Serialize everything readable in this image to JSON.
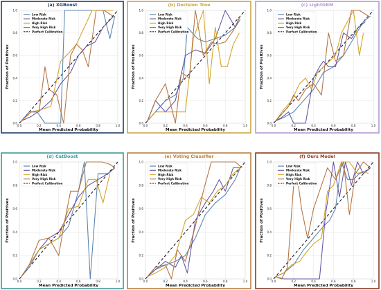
{
  "colors": {
    "low": "#5580a8",
    "moderate": "#5d4fa0",
    "high": "#d0a020",
    "very_high": "#b06e3a",
    "perfect": "#1a1a2e",
    "grid": "#e4e4e4"
  },
  "chart_data": [
    {
      "type": "line",
      "title": "(a) XGBoost",
      "frame_color": "#1f3f66",
      "xlabel": "Mean Predicted Probability",
      "ylabel": "Fraction of Positives",
      "xlim": [
        0,
        1
      ],
      "ylim": [
        0,
        1
      ],
      "xticks": [
        "0.0",
        "0.2",
        "0.4",
        "0.6",
        "0.8",
        "1.0"
      ],
      "yticks": [
        "0.0",
        "0.2",
        "0.4",
        "0.6",
        "0.8",
        "1.0"
      ],
      "legend": [
        "Low Risk",
        "Moderate Risk",
        "High Risk",
        "Very High Risk",
        "Perfect Calibration"
      ],
      "legend_position": "top-left",
      "grid": true,
      "series": [
        {
          "name": "Low Risk",
          "x": [
            0.02,
            0.1,
            0.18,
            0.26,
            0.34,
            0.42,
            0.46,
            0.62,
            0.68,
            0.75,
            0.85,
            0.92,
            0.97
          ],
          "y": [
            0.02,
            0.1,
            0.1,
            0.0,
            0.0,
            0.0,
            1.0,
            1.0,
            1.0,
            1.0,
            1.0,
            0.75,
            0.95
          ]
        },
        {
          "name": "Moderate Risk",
          "x": [
            0.02,
            0.12,
            0.22,
            0.32,
            0.42,
            0.52,
            0.6,
            0.68,
            0.77,
            0.85,
            0.96
          ],
          "y": [
            0.02,
            0.06,
            0.12,
            0.2,
            0.35,
            0.45,
            0.6,
            0.68,
            0.72,
            0.85,
            0.95
          ]
        },
        {
          "name": "High Risk",
          "x": [
            0.02,
            0.12,
            0.22,
            0.32,
            0.42,
            0.5,
            0.58,
            0.66,
            0.74,
            0.82,
            0.9,
            0.95
          ],
          "y": [
            0.02,
            0.1,
            0.12,
            0.15,
            0.55,
            0.62,
            0.7,
            0.85,
            1.0,
            1.0,
            1.0,
            1.0
          ]
        },
        {
          "name": "Very High Risk",
          "x": [
            0.02,
            0.12,
            0.2,
            0.26,
            0.3,
            0.38,
            0.45,
            0.52,
            0.58,
            0.64,
            0.7,
            0.78,
            0.86,
            0.95
          ],
          "y": [
            0.02,
            0.1,
            0.1,
            0.5,
            0.3,
            0.25,
            0.0,
            0.6,
            0.7,
            0.65,
            0.5,
            1.0,
            1.0,
            0.95
          ]
        }
      ]
    },
    {
      "type": "line",
      "title": "(b) Decision Tree",
      "frame_color": "#c9a640",
      "xlabel": "Mean Predicted Probability",
      "ylabel": "Fraction of Positives",
      "xlim": [
        0,
        1
      ],
      "ylim": [
        0,
        1
      ],
      "xticks": [
        "0.0",
        "0.2",
        "0.4",
        "0.6",
        "0.8",
        "1.0"
      ],
      "yticks": [
        "0.0",
        "0.2",
        "0.4",
        "0.6",
        "0.8",
        "1.0"
      ],
      "legend": [
        "Low Risk",
        "Moderate Risk",
        "High Risk",
        "Very High Risk",
        "Perfect Calibration"
      ],
      "legend_position": "top-left",
      "grid": true,
      "series": [
        {
          "name": "Low Risk",
          "x": [
            0.02,
            0.1,
            0.2,
            0.3,
            0.38,
            0.42,
            0.52,
            0.6,
            0.7,
            0.8,
            0.9,
            0.95
          ],
          "y": [
            0.02,
            0.1,
            0.2,
            0.25,
            0.4,
            0.85,
            0.75,
            0.72,
            0.75,
            0.78,
            0.85,
            0.92
          ]
        },
        {
          "name": "Moderate Risk",
          "x": [
            0.02,
            0.1,
            0.2,
            0.3,
            0.4,
            0.5,
            0.6,
            0.7,
            0.8,
            0.9,
            0.95
          ],
          "y": [
            0.02,
            0.2,
            0.1,
            0.2,
            0.6,
            0.65,
            0.62,
            0.75,
            1.0,
            0.85,
            0.95
          ]
        },
        {
          "name": "High Risk",
          "x": [
            0.02,
            0.1,
            0.2,
            0.3,
            0.4,
            0.48,
            0.58,
            0.64,
            0.7,
            0.76,
            0.82,
            0.88,
            0.94
          ],
          "y": [
            0.02,
            0.1,
            0.1,
            0.1,
            0.1,
            0.75,
            1.0,
            0.35,
            0.85,
            0.5,
            0.5,
            0.7,
            0.8
          ]
        },
        {
          "name": "Very High Risk",
          "x": [
            0.02,
            0.1,
            0.2,
            0.3,
            0.36,
            0.44,
            0.5,
            0.58,
            0.66,
            0.72,
            0.8,
            0.88,
            0.95
          ],
          "y": [
            0.02,
            0.2,
            0.35,
            0.0,
            0.45,
            0.4,
            1.0,
            0.6,
            0.72,
            0.7,
            0.72,
            0.82,
            0.95
          ]
        }
      ]
    },
    {
      "type": "line",
      "title": "(c) LightGBM",
      "frame_color": "#b49ad4",
      "xlabel": "Mean Predicted Probability",
      "ylabel": "Fraction of Positives",
      "xlim": [
        0,
        1
      ],
      "ylim": [
        0,
        1
      ],
      "xticks": [
        "0.0",
        "0.2",
        "0.4",
        "0.6",
        "0.8",
        "1.0"
      ],
      "yticks": [
        "0.0",
        "0.2",
        "0.4",
        "0.6",
        "0.8",
        "1.0"
      ],
      "legend": [
        "Low Risk",
        "Moderate Risk",
        "High Risk",
        "Very High Risk",
        "Perfect Calibration"
      ],
      "legend_position": "top-left",
      "grid": true,
      "series": [
        {
          "name": "Low Risk",
          "x": [
            0.02,
            0.1,
            0.2,
            0.3,
            0.4,
            0.5,
            0.6,
            0.7,
            0.8,
            0.9,
            0.97
          ],
          "y": [
            0.02,
            0.05,
            0.1,
            0.2,
            0.3,
            0.45,
            0.5,
            0.6,
            0.75,
            0.9,
            0.95
          ]
        },
        {
          "name": "Moderate Risk",
          "x": [
            0.02,
            0.08,
            0.15,
            0.2,
            0.25,
            0.32,
            0.4,
            0.46,
            0.5,
            0.55,
            0.62,
            0.7,
            0.78,
            0.85,
            0.92
          ],
          "y": [
            0.02,
            0.05,
            0.1,
            0.0,
            0.0,
            0.0,
            0.4,
            0.5,
            0.55,
            0.5,
            0.5,
            0.8,
            0.75,
            0.85,
            0.9
          ]
        },
        {
          "name": "High Risk",
          "x": [
            0.02,
            0.1,
            0.18,
            0.26,
            0.32,
            0.38,
            0.44,
            0.5,
            0.56,
            0.62,
            0.68,
            0.74,
            0.8,
            0.86,
            0.9
          ],
          "y": [
            0.02,
            0.12,
            0.2,
            0.35,
            0.4,
            0.3,
            0.45,
            0.5,
            0.55,
            0.6,
            0.8,
            0.9,
            1.0,
            0.6,
            0.8
          ]
        },
        {
          "name": "Very High Risk",
          "x": [
            0.02,
            0.1,
            0.15,
            0.2,
            0.25,
            0.32,
            0.4,
            0.48,
            0.55,
            0.62,
            0.7,
            0.78,
            0.86,
            0.95
          ],
          "y": [
            0.02,
            0.1,
            0.15,
            0.25,
            0.2,
            0.3,
            0.35,
            0.25,
            0.8,
            0.55,
            0.6,
            1.0,
            1.0,
            0.95
          ]
        }
      ]
    },
    {
      "type": "line",
      "title": "(d) CatBoost",
      "frame_color": "#3c9a98",
      "xlabel": "Mean Predicted Probability",
      "ylabel": "Fraction of Positives",
      "xlim": [
        0,
        1
      ],
      "ylim": [
        0,
        1
      ],
      "xticks": [
        "0.0",
        "0.2",
        "0.4",
        "0.6",
        "0.8",
        "1.0"
      ],
      "yticks": [
        "0.0",
        "0.2",
        "0.4",
        "0.6",
        "0.8",
        "1.0"
      ],
      "legend": [
        "Low Risk",
        "Moderate Risk",
        "High Risk",
        "Very High Risk",
        "Perfect Calibration"
      ],
      "legend_position": "top-left",
      "grid": true,
      "series": [
        {
          "name": "Low Risk",
          "x": [
            0.02,
            0.1,
            0.2,
            0.3,
            0.4,
            0.5,
            0.6,
            0.66,
            0.72,
            0.8,
            0.9,
            0.97
          ],
          "y": [
            0.02,
            0.1,
            0.25,
            0.3,
            0.35,
            0.45,
            0.75,
            1.0,
            0.0,
            0.9,
            0.9,
            0.95
          ]
        },
        {
          "name": "Moderate Risk",
          "x": [
            0.02,
            0.1,
            0.2,
            0.3,
            0.4,
            0.5,
            0.6,
            0.7,
            0.8,
            0.9,
            0.97
          ],
          "y": [
            0.02,
            0.12,
            0.25,
            0.35,
            0.4,
            0.55,
            0.7,
            0.8,
            0.85,
            0.9,
            0.95
          ]
        },
        {
          "name": "High Risk",
          "x": [
            0.02,
            0.1,
            0.2,
            0.3,
            0.4,
            0.5,
            0.6,
            0.7,
            0.78,
            0.85,
            0.92
          ],
          "y": [
            0.02,
            0.12,
            0.25,
            0.3,
            0.35,
            0.6,
            0.62,
            0.85,
            0.85,
            0.65,
            0.9
          ]
        },
        {
          "name": "Very High Risk",
          "x": [
            0.02,
            0.1,
            0.2,
            0.3,
            0.4,
            0.45,
            0.52,
            0.6,
            0.68,
            0.76,
            0.84,
            0.92,
            0.97
          ],
          "y": [
            0.02,
            0.12,
            0.33,
            0.35,
            0.2,
            0.45,
            0.75,
            0.75,
            1.0,
            1.0,
            1.0,
            0.98,
            0.95
          ]
        }
      ]
    },
    {
      "type": "line",
      "title": "(e) Voting Classifier",
      "frame_color": "#b58040",
      "xlabel": "Mean Predicted Probability",
      "ylabel": "Fraction of Positives",
      "xlim": [
        0,
        1
      ],
      "ylim": [
        0,
        1
      ],
      "xticks": [
        "0.0",
        "0.2",
        "0.4",
        "0.6",
        "0.8",
        "1.0"
      ],
      "yticks": [
        "0.0",
        "0.2",
        "0.4",
        "0.6",
        "0.8",
        "1.0"
      ],
      "legend": [
        "Low Risk",
        "Moderate Risk",
        "High Risk",
        "Very High Risk",
        "Perfect Calibration"
      ],
      "legend_position": "top-left",
      "grid": true,
      "series": [
        {
          "name": "Low Risk",
          "x": [
            0.02,
            0.1,
            0.2,
            0.3,
            0.4,
            0.5,
            0.6,
            0.7,
            0.8,
            0.9,
            0.95
          ],
          "y": [
            0.02,
            0.08,
            0.12,
            0.15,
            0.2,
            0.35,
            0.55,
            0.65,
            0.72,
            0.85,
            0.95
          ]
        },
        {
          "name": "Moderate Risk",
          "x": [
            0.02,
            0.1,
            0.2,
            0.3,
            0.36,
            0.42,
            0.5,
            0.6,
            0.68,
            0.74,
            0.8,
            0.88,
            0.95
          ],
          "y": [
            0.02,
            0.08,
            0.15,
            0.1,
            0.2,
            0.05,
            0.5,
            0.65,
            0.75,
            0.85,
            0.75,
            0.95,
            0.95
          ]
        },
        {
          "name": "High Risk",
          "x": [
            0.02,
            0.1,
            0.2,
            0.3,
            0.4,
            0.48,
            0.56,
            0.64,
            0.72,
            0.8,
            0.88,
            0.95
          ],
          "y": [
            0.02,
            0.05,
            0.1,
            0.2,
            0.5,
            0.55,
            0.7,
            0.65,
            0.75,
            0.8,
            0.9,
            0.95
          ]
        },
        {
          "name": "Very High Risk",
          "x": [
            0.02,
            0.1,
            0.2,
            0.26,
            0.32,
            0.4,
            0.5,
            0.58,
            0.66,
            0.74,
            0.82,
            0.9,
            0.97
          ],
          "y": [
            0.02,
            0.1,
            0.12,
            0.0,
            0.25,
            0.15,
            0.45,
            0.75,
            1.0,
            1.0,
            1.0,
            1.0,
            0.95
          ]
        }
      ]
    },
    {
      "type": "line",
      "title": "(f) Ours Model",
      "frame_color": "#8c3a22",
      "xlabel": "Mean Predicted Probability",
      "ylabel": "Fraction of Positives",
      "xlim": [
        0,
        1
      ],
      "ylim": [
        0,
        1
      ],
      "xticks": [
        "0.0",
        "0.2",
        "0.4",
        "0.6",
        "0.8",
        "1.0"
      ],
      "yticks": [
        "0.0",
        "0.2",
        "0.4",
        "0.6",
        "0.8",
        "1.0"
      ],
      "legend": [
        "Low Risk",
        "Moderate Risk",
        "High Risk",
        "Very High Risk",
        "Perfect Calibration"
      ],
      "legend_position": "top-left",
      "grid": true,
      "series": [
        {
          "name": "Low Risk",
          "x": [
            0.02,
            0.1,
            0.2,
            0.3,
            0.4,
            0.5,
            0.56,
            0.62,
            0.68,
            0.74,
            0.8,
            0.86,
            0.92,
            0.97
          ],
          "y": [
            0.02,
            0.05,
            0.12,
            0.25,
            0.35,
            0.45,
            0.5,
            0.6,
            1.0,
            0.85,
            0.85,
            0.9,
            0.92,
            0.95
          ]
        },
        {
          "name": "Moderate Risk",
          "x": [
            0.02,
            0.1,
            0.18,
            0.26,
            0.32,
            0.4,
            0.46,
            0.52,
            0.6,
            0.66,
            0.72,
            0.78,
            0.84,
            0.9,
            0.97
          ],
          "y": [
            0.02,
            0.0,
            0.0,
            0.0,
            0.0,
            0.0,
            0.0,
            0.55,
            1.0,
            0.7,
            1.0,
            0.8,
            1.0,
            0.9,
            0.95
          ]
        },
        {
          "name": "High Risk",
          "x": [
            0.02,
            0.1,
            0.18,
            0.26,
            0.32,
            0.4,
            0.48,
            0.54,
            0.6,
            0.68,
            0.76,
            0.84,
            0.9,
            0.95
          ],
          "y": [
            0.02,
            0.05,
            0.12,
            0.15,
            0.22,
            0.3,
            0.35,
            0.75,
            0.8,
            1.0,
            1.0,
            0.9,
            0.92,
            0.9
          ]
        },
        {
          "name": "Very High Risk",
          "x": [
            0.02,
            0.08,
            0.14,
            0.2,
            0.24,
            0.28,
            0.34,
            0.4,
            0.46,
            0.54,
            0.62,
            0.7,
            0.76,
            0.82,
            0.9,
            0.97
          ],
          "y": [
            0.02,
            0.0,
            0.1,
            0.8,
            0.85,
            0.6,
            0.35,
            0.6,
            0.75,
            0.95,
            0.85,
            1.0,
            0.55,
            0.9,
            1.0,
            0.95
          ]
        }
      ]
    }
  ]
}
